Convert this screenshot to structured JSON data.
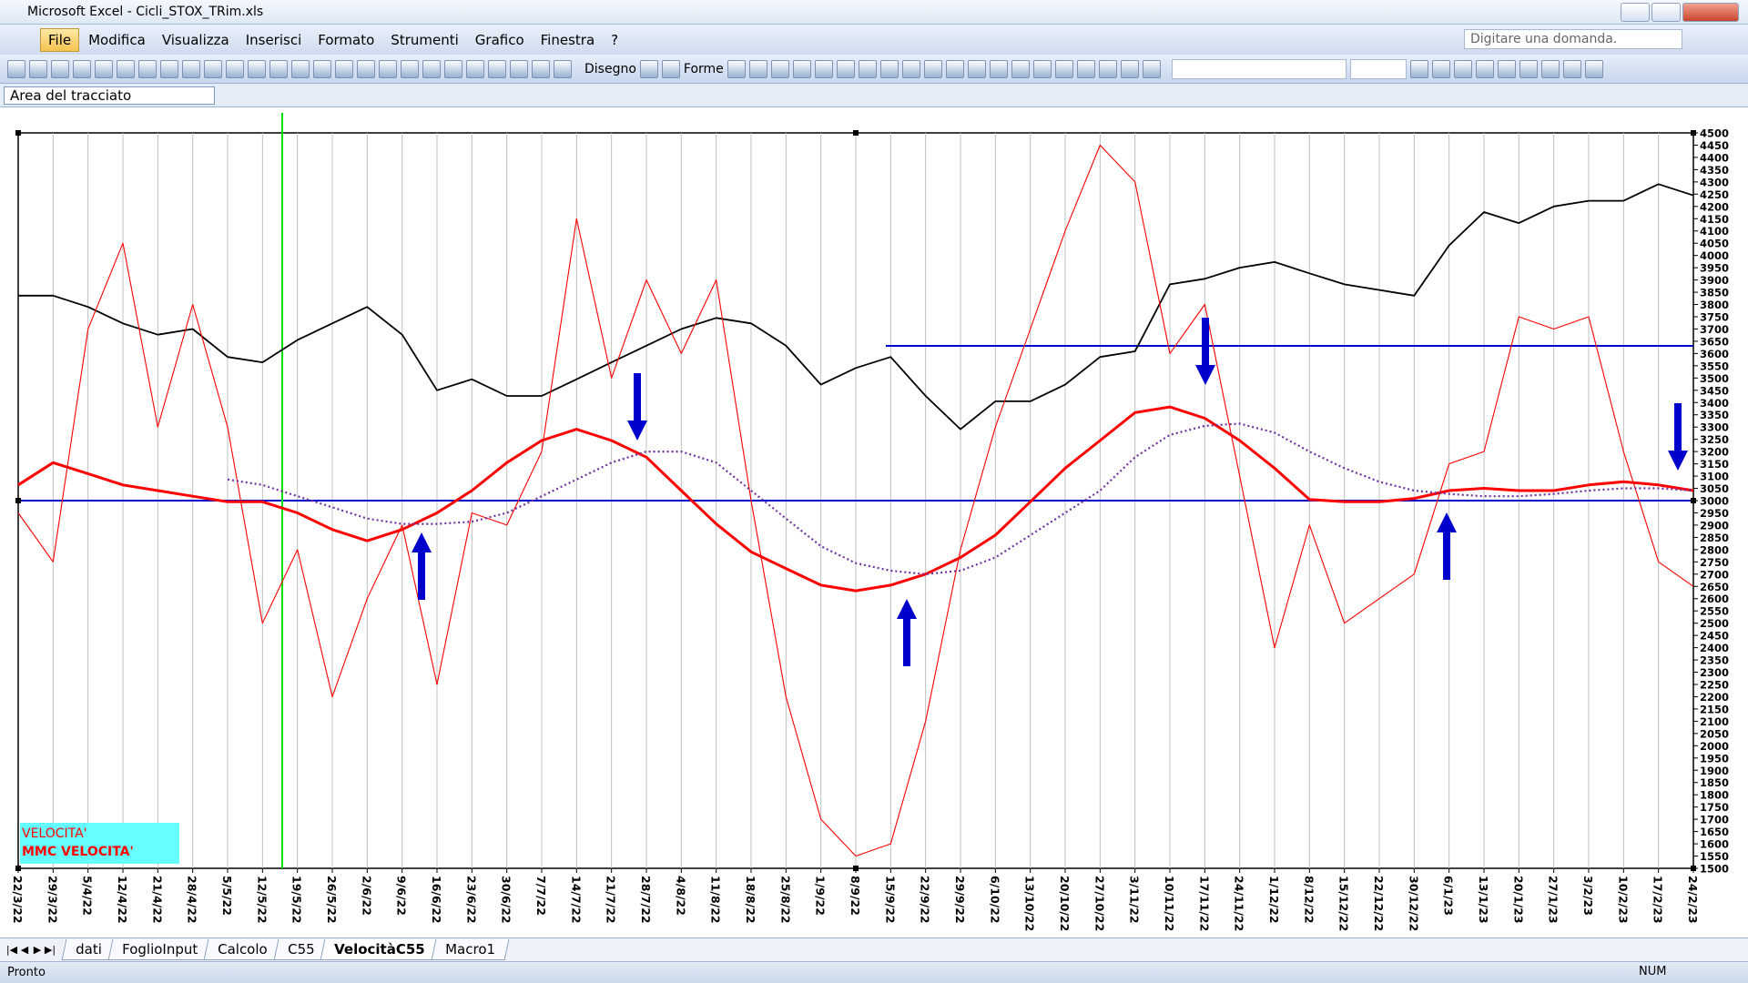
{
  "window": {
    "title": "Microsoft Excel - Cicli_STOX_TRim.xls"
  },
  "menu": [
    "File",
    "Modifica",
    "Visualizza",
    "Inserisci",
    "Formato",
    "Strumenti",
    "Grafico",
    "Finestra",
    "?"
  ],
  "help_box": "Digitare una domanda.",
  "toolbar": {
    "draw": "Disegno",
    "shapes": "Forme"
  },
  "name_box": "Area del tracciato",
  "sheets": [
    "dati",
    "FoglioInput",
    "Calcolo",
    "C55",
    "VelocitàC55",
    "Macro1"
  ],
  "active_sheet": 4,
  "status": {
    "left": "Pronto",
    "right": "NUM"
  },
  "chart_data": {
    "type": "line",
    "y_axis_side": "right",
    "grid": "x",
    "legend": "lower left",
    "x": [
      "22/3/22",
      "29/3/22",
      "5/4/22",
      "12/4/22",
      "21/4/22",
      "28/4/22",
      "5/5/22",
      "12/5/22",
      "19/5/22",
      "26/5/22",
      "2/6/22",
      "9/6/22",
      "16/6/22",
      "23/6/22",
      "30/6/22",
      "7/7/22",
      "14/7/22",
      "21/7/22",
      "28/7/22",
      "4/8/22",
      "11/8/22",
      "18/8/22",
      "25/8/22",
      "1/9/22",
      "8/9/22",
      "15/9/22",
      "22/9/22",
      "29/9/22",
      "6/10/22",
      "13/10/22",
      "20/10/22",
      "27/10/22",
      "3/11/22",
      "10/11/22",
      "17/11/22",
      "24/11/22",
      "1/12/22",
      "8/12/22",
      "15/12/22",
      "22/12/22",
      "30/12/22",
      "6/1/23",
      "13/1/23",
      "20/1/23",
      "27/1/23",
      "3/2/23",
      "10/2/23",
      "17/2/23",
      "24/2/23"
    ],
    "ylim": [
      1500,
      4500
    ],
    "yticks": [
      1500,
      1550,
      1600,
      1650,
      1700,
      1750,
      1800,
      1850,
      1900,
      1950,
      2000,
      2050,
      2100,
      2150,
      2200,
      2250,
      2300,
      2350,
      2400,
      2450,
      2500,
      2550,
      2600,
      2650,
      2700,
      2750,
      2800,
      2850,
      2900,
      2950,
      3000,
      3050,
      3100,
      3150,
      3200,
      3250,
      3300,
      3350,
      3400,
      3450,
      3500,
      3550,
      3600,
      3650,
      3700,
      3750,
      3800,
      3850,
      3900,
      3950,
      4000,
      4050,
      4100,
      4150,
      4200,
      4250,
      4300,
      4350,
      4400,
      4450,
      4500
    ],
    "series": [
      {
        "color": "#000000",
        "style": "medium",
        "values": [
          3836,
          3836,
          3790,
          3723,
          3677,
          3700,
          3586,
          3564,
          3655,
          3723,
          3790,
          3677,
          3450,
          3495,
          3427,
          3427,
          3495,
          3564,
          3632,
          3700,
          3745,
          3723,
          3632,
          3473,
          3541,
          3586,
          3427,
          3291,
          3405,
          3405,
          3473,
          3586,
          3609,
          3882,
          3905,
          3950,
          3973,
          3927,
          3882,
          3859,
          3836,
          4041,
          4177,
          4132,
          4200,
          4223,
          4223,
          4291,
          4245
        ]
      },
      {
        "name": "VELOCITA'",
        "color": "#ff0000",
        "style": "thin",
        "values": [
          2950,
          2750,
          3700,
          4050,
          3300,
          3800,
          3300,
          2500,
          2800,
          2200,
          2600,
          2900,
          2250,
          2950,
          2900,
          3200,
          4150,
          3500,
          3900,
          3600,
          3900,
          3000,
          2200,
          1700,
          1550,
          1600,
          2100,
          2800,
          3300,
          3700,
          4100,
          4450,
          4300,
          3600,
          3800,
          3100,
          2400,
          2900,
          2500,
          2600,
          2700,
          3150,
          3200,
          3750,
          3700,
          3750,
          3200,
          2750,
          2650
        ]
      },
      {
        "name": "MMC VELOCITA'",
        "color": "#ff0000",
        "style": "thick",
        "values": [
          3064,
          3155,
          3110,
          3064,
          3041,
          3018,
          2995,
          2995,
          2950,
          2882,
          2836,
          2882,
          2950,
          3041,
          3155,
          3245,
          3291,
          3245,
          3177,
          3041,
          2905,
          2791,
          2723,
          2655,
          2632,
          2655,
          2700,
          2768,
          2859,
          2995,
          3132,
          3245,
          3359,
          3382,
          3336,
          3245,
          3132,
          3005,
          2995,
          2995,
          3009,
          3041,
          3050,
          3041,
          3041,
          3064,
          3077,
          3064,
          3041
        ]
      },
      {
        "color": "#7030a0",
        "style": "dotted",
        "values": [
          null,
          null,
          null,
          null,
          null,
          null,
          3086,
          3064,
          3018,
          2973,
          2927,
          2905,
          2905,
          2914,
          2950,
          3018,
          3086,
          3155,
          3200,
          3200,
          3155,
          3041,
          2927,
          2814,
          2745,
          2714,
          2700,
          2714,
          2768,
          2859,
          2950,
          3041,
          3177,
          3268,
          3305,
          3314,
          3277,
          3200,
          3132,
          3077,
          3041,
          3027,
          3018,
          3018,
          3027,
          3041,
          3050,
          3050,
          3041
        ]
      }
    ]
  }
}
